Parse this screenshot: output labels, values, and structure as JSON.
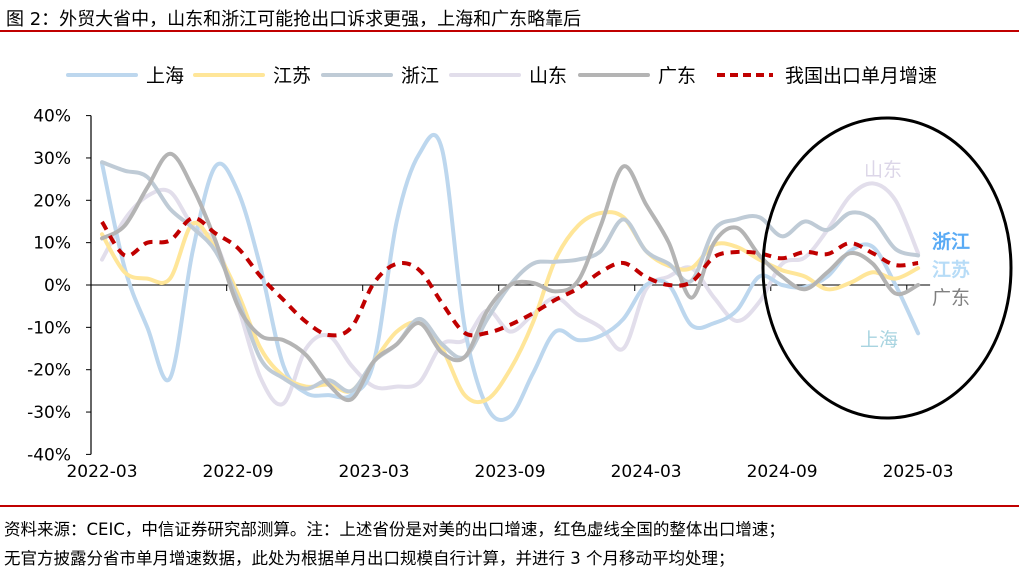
{
  "title": "图 2：外贸大省中，山东和浙江可能抢出口诉求更强，上海和广东略靠后",
  "footer": {
    "line1": "资料来源：CEIC，中信证券研究部测算。注：上述省份是对美的出口增速，红色虚线全国的整体出口增速；",
    "line2": "无官方披露分省市单月增速数据，此处为根据单月出口规模自行计算，并进行 3 个月移动平均处理；"
  },
  "chart_data": {
    "type": "line",
    "title": "",
    "xlabel": "",
    "ylabel": "",
    "ylim": [
      -40,
      40
    ],
    "ytick_step": 10,
    "yticks": [
      "40%",
      "30%",
      "20%",
      "10%",
      "0%",
      "-10%",
      "-20%",
      "-30%",
      "-40%"
    ],
    "x_start": "2022-03",
    "x_end": "2025-03",
    "xticks": [
      "2022-03",
      "2022-09",
      "2023-03",
      "2023-09",
      "2024-03",
      "2024-09",
      "2025-03"
    ],
    "legend_position": "top",
    "grid": false,
    "series": [
      {
        "name": "上海",
        "color": "#bdd7ee",
        "dashed": false,
        "values": [
          28.7,
          4,
          -10,
          -22,
          8,
          28,
          22,
          4,
          -19,
          -25.5,
          -26,
          -26,
          -18,
          15,
          31,
          32,
          -10,
          -29,
          -31,
          -21,
          -11,
          -13,
          -12,
          -8,
          0,
          0,
          -9.5,
          -9,
          -6,
          2,
          0,
          -0.5,
          2,
          8,
          9,
          0,
          -11.4
        ]
      },
      {
        "name": "江苏",
        "color": "#ffe699",
        "dashed": false,
        "values": [
          12,
          3,
          1.5,
          1.5,
          14.5,
          8.5,
          -2,
          -15,
          -21.5,
          -24,
          -23.5,
          -25,
          -18,
          -11,
          -9,
          -15,
          -26,
          -27,
          -20,
          -9,
          6,
          14,
          17,
          16,
          8,
          4.5,
          4,
          9.5,
          9,
          6,
          3.5,
          2,
          -1,
          0.5,
          3,
          1.5,
          4
        ]
      },
      {
        "name": "浙江",
        "color": "#bfcbd6",
        "dashed": false,
        "values": [
          29,
          27,
          25.5,
          18,
          13.5,
          8,
          -3.5,
          -17.5,
          -22,
          -24.5,
          -22.5,
          -25,
          -18,
          -14,
          -8,
          -14,
          -17,
          -8,
          0,
          5,
          5.5,
          6,
          8,
          15.5,
          8,
          5,
          1,
          13,
          15.5,
          16,
          11.5,
          15,
          13,
          17,
          15.5,
          8.5,
          7
        ]
      },
      {
        "name": "山东",
        "color": "#e2deeb",
        "dashed": false,
        "values": [
          6,
          15.5,
          21,
          22,
          14,
          10,
          -5,
          -22,
          -28,
          -15,
          -12,
          -19,
          -24,
          -24,
          -23,
          -14,
          -13,
          -6,
          -11,
          -7,
          -3,
          -7,
          -10,
          -15,
          -1,
          2,
          4,
          -3,
          -8.5,
          -4,
          5,
          6.5,
          13,
          21,
          24,
          20,
          7.5
        ]
      },
      {
        "name": "广东",
        "color": "#b4b4b4",
        "dashed": false,
        "values": [
          11,
          14,
          23,
          31,
          23,
          10.5,
          -5,
          -12,
          -13,
          -16.5,
          -23.5,
          -27,
          -18,
          -14,
          -9,
          -16,
          -17,
          -6,
          0,
          0.5,
          -1.5,
          1,
          14,
          28,
          19,
          10,
          -3,
          10,
          13.5,
          7,
          2,
          -1,
          3,
          7.5,
          5,
          -2,
          0
        ]
      },
      {
        "name": "我国出口单月增速",
        "color": "#c00000",
        "dashed": true,
        "values": [
          14.9,
          7,
          10,
          10.5,
          15.8,
          12.2,
          8.7,
          2,
          -3.5,
          -8.7,
          -11.8,
          -10,
          0.5,
          5,
          3.5,
          -4.3,
          -11.3,
          -11.3,
          -9.4,
          -6.7,
          -3.5,
          -0.8,
          3.1,
          5.2,
          1.9,
          0,
          0.7,
          6.6,
          7.8,
          7.5,
          6.3,
          7.8,
          7.3,
          9.9,
          7.5,
          4.7,
          5.2
        ]
      }
    ],
    "annotations": [
      {
        "text": "山东",
        "color": "#dcd6e8",
        "bold": false
      },
      {
        "text": "浙江",
        "color": "#5aabf5",
        "bold": true
      },
      {
        "text": "江苏",
        "color": "#b7dcf7",
        "bold": true
      },
      {
        "text": "广东",
        "color": "#808080",
        "bold": false
      },
      {
        "text": "上海",
        "color": "#a8d4e0",
        "bold": false
      }
    ],
    "highlight": "ellipse around 2024-09 to 2025-03"
  }
}
